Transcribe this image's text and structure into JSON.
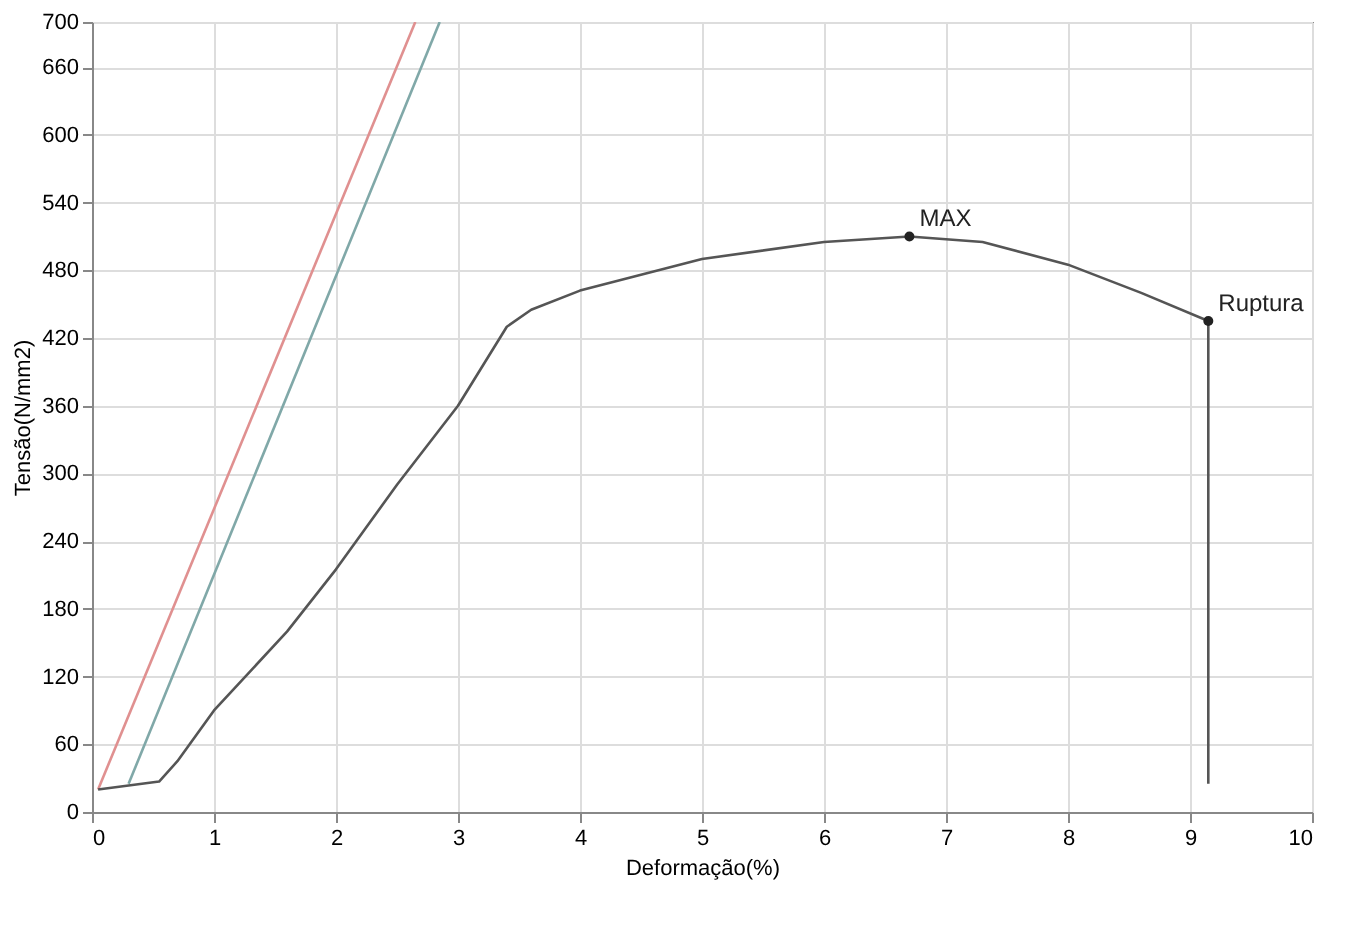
{
  "chart_data": {
    "type": "line",
    "xlabel": "Deformação(%)",
    "ylabel": "Tensão(N/mm2)",
    "xlim": [
      0,
      10
    ],
    "xticks": [
      0,
      1,
      2,
      3,
      4,
      5,
      6,
      7,
      8,
      9,
      10
    ],
    "ylim": [
      0,
      700
    ],
    "yticks": [
      0,
      60,
      120,
      180,
      240,
      300,
      360,
      420,
      480,
      540,
      600,
      660,
      700
    ],
    "grid": true,
    "marker": "none",
    "line_style": "solid",
    "series": [
      {
        "color": "#e09090",
        "x": [
          0.05,
          2.65
        ],
        "values": [
          20,
          700
        ]
      },
      {
        "color": "#80a8a8",
        "x": [
          0.3,
          2.85
        ],
        "values": [
          25,
          700
        ]
      },
      {
        "color": "#555555",
        "x": [
          0.05,
          0.55,
          0.7,
          1.0,
          1.6,
          2.0,
          2.5,
          3.0,
          3.4,
          3.6,
          4.0,
          5.0,
          6.0,
          6.7,
          7.3,
          8.0,
          8.6,
          9.15,
          9.15
        ],
        "values": [
          20,
          27,
          45,
          90,
          160,
          215,
          290,
          360,
          430,
          445,
          462,
          490,
          505,
          510,
          505,
          485,
          460,
          435,
          25
        ]
      }
    ],
    "annotations": [
      {
        "text": "MAX",
        "x": 6.7,
        "y": 510
      },
      {
        "text": "Ruptura",
        "x": 9.15,
        "y": 435
      }
    ]
  }
}
